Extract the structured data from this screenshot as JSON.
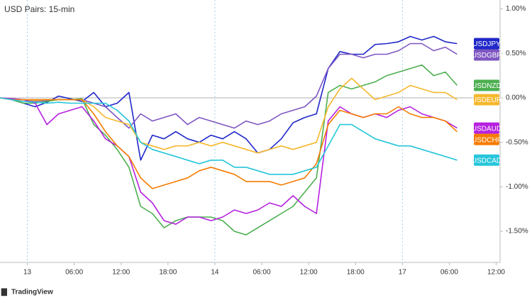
{
  "chart_data": {
    "type": "line",
    "title": "USD Pairs: 15-min",
    "source": "TradingView",
    "x": [
      -3.5,
      -2,
      -0.5,
      1,
      2.5,
      4,
      5.5,
      7,
      8.5,
      10,
      11.5,
      13,
      14.5,
      16,
      17.5,
      19,
      20.5,
      22,
      23.5,
      25,
      26.5,
      28,
      29.5,
      31,
      32.5,
      34,
      35.5,
      37,
      38.5,
      40,
      41.5,
      43,
      44.5,
      46,
      47.5,
      49,
      50.5,
      52,
      53.5,
      55
    ],
    "xlim": [
      -3.5,
      60.5
    ],
    "xticks": [
      {
        "value": 0,
        "label": "13"
      },
      {
        "value": 6,
        "label": "06:00"
      },
      {
        "value": 12,
        "label": "12:00"
      },
      {
        "value": 18,
        "label": "18:00"
      },
      {
        "value": 24,
        "label": "14"
      },
      {
        "value": 30,
        "label": "06:00"
      },
      {
        "value": 36,
        "label": "12:00"
      },
      {
        "value": 42,
        "label": "18:00"
      },
      {
        "value": 48,
        "label": "17"
      },
      {
        "value": 54,
        "label": "06:00"
      },
      {
        "value": 60,
        "label": "12:00"
      }
    ],
    "ylim": [
      -1.85,
      1.1
    ],
    "yticks": [
      {
        "value": 1,
        "label": "1.00%"
      },
      {
        "value": 0.5,
        "label": "0.50%"
      },
      {
        "value": 0,
        "label": "0.00%"
      },
      {
        "value": -0.5,
        "label": "-0.50%"
      },
      {
        "value": -1,
        "label": "-1.00%"
      },
      {
        "value": -1.5,
        "label": "-1.50%"
      }
    ],
    "series": [
      {
        "name": "USDJPY",
        "color": "#2028c8",
        "values": [
          0,
          -0.02,
          -0.06,
          -0.1,
          -0.05,
          0.02,
          -0.01,
          -0.04,
          0.06,
          -0.1,
          -0.06,
          0.06,
          -0.7,
          -0.42,
          -0.46,
          -0.38,
          -0.46,
          -0.5,
          -0.42,
          -0.46,
          -0.38,
          -0.46,
          -0.62,
          -0.58,
          -0.46,
          -0.28,
          -0.22,
          -0.18,
          0.33,
          0.52,
          0.49,
          0.49,
          0.6,
          0.61,
          0.63,
          0.69,
          0.65,
          0.69,
          0.63,
          0.61
        ]
      },
      {
        "name": "USDGBP",
        "color": "#7e57c2",
        "values": [
          0,
          -0.01,
          -0.02,
          -0.04,
          -0.03,
          -0.02,
          -0.02,
          -0.02,
          -0.06,
          -0.1,
          -0.22,
          -0.34,
          -0.18,
          -0.26,
          -0.22,
          -0.18,
          -0.3,
          -0.22,
          -0.26,
          -0.3,
          -0.34,
          -0.26,
          -0.3,
          -0.26,
          -0.18,
          -0.14,
          -0.1,
          0.02,
          0.33,
          0.49,
          0.49,
          0.45,
          0.49,
          0.49,
          0.53,
          0.61,
          0.61,
          0.53,
          0.57,
          0.49
        ]
      },
      {
        "name": "USDNZD",
        "color": "#4caf50",
        "values": [
          0,
          -0.02,
          -0.06,
          -0.06,
          -0.04,
          -0.02,
          -0.02,
          -0.01,
          -0.3,
          -0.42,
          -0.58,
          -0.78,
          -1.22,
          -1.3,
          -1.46,
          -1.38,
          -1.34,
          -1.34,
          -1.34,
          -1.38,
          -1.5,
          -1.54,
          -1.46,
          -1.38,
          -1.3,
          -1.22,
          -1.06,
          -0.9,
          0.06,
          0.14,
          0.1,
          0.14,
          0.18,
          0.25,
          0.29,
          0.33,
          0.37,
          0.25,
          0.29,
          0.14
        ]
      },
      {
        "name": "USDEUR",
        "color": "#f5b82e",
        "values": [
          0,
          -0.02,
          -0.02,
          -0.03,
          -0.02,
          -0.02,
          -0.02,
          -0.02,
          -0.1,
          -0.22,
          -0.26,
          -0.3,
          -0.5,
          -0.54,
          -0.58,
          -0.54,
          -0.54,
          -0.5,
          -0.54,
          -0.5,
          -0.54,
          -0.58,
          -0.62,
          -0.58,
          -0.54,
          -0.58,
          -0.54,
          -0.5,
          -0.1,
          0.1,
          0.22,
          0.1,
          -0.02,
          0.02,
          0.06,
          0.14,
          0.1,
          0.06,
          0.06,
          -0.02
        ]
      },
      {
        "name": "USDAUD",
        "color": "#b620e0",
        "values": [
          0,
          -0.01,
          -0.02,
          -0.06,
          -0.3,
          -0.18,
          -0.14,
          -0.1,
          -0.26,
          -0.46,
          -0.54,
          -0.66,
          -1.06,
          -1.18,
          -1.38,
          -1.42,
          -1.34,
          -1.34,
          -1.38,
          -1.34,
          -1.26,
          -1.3,
          -1.26,
          -1.18,
          -1.22,
          -1.1,
          -1.22,
          -1.3,
          -0.26,
          -0.1,
          -0.18,
          -0.22,
          -0.18,
          -0.22,
          -0.14,
          -0.1,
          -0.18,
          -0.22,
          -0.26,
          -0.34
        ]
      },
      {
        "name": "USDCHF",
        "color": "#f57c00",
        "values": [
          0,
          -0.02,
          -0.02,
          -0.02,
          -0.02,
          -0.02,
          -0.02,
          -0.02,
          -0.18,
          -0.38,
          -0.54,
          -0.66,
          -0.9,
          -1.02,
          -0.98,
          -0.94,
          -0.9,
          -0.82,
          -0.78,
          -0.82,
          -0.86,
          -0.94,
          -0.94,
          -0.94,
          -0.98,
          -0.94,
          -0.9,
          -0.74,
          -0.3,
          -0.14,
          -0.18,
          -0.22,
          -0.18,
          -0.18,
          -0.1,
          -0.18,
          -0.22,
          -0.22,
          -0.26,
          -0.38
        ]
      },
      {
        "name": "USDCAD",
        "color": "#26c6da",
        "values": [
          0,
          -0.02,
          -0.04,
          -0.05,
          -0.06,
          -0.05,
          -0.06,
          -0.06,
          -0.06,
          -0.06,
          -0.14,
          -0.26,
          -0.5,
          -0.58,
          -0.62,
          -0.66,
          -0.7,
          -0.74,
          -0.7,
          -0.7,
          -0.78,
          -0.78,
          -0.82,
          -0.86,
          -0.86,
          -0.86,
          -0.82,
          -0.78,
          -0.54,
          -0.3,
          -0.3,
          -0.38,
          -0.46,
          -0.5,
          -0.54,
          -0.54,
          -0.58,
          -0.62,
          -0.66,
          -0.7
        ]
      }
    ]
  }
}
